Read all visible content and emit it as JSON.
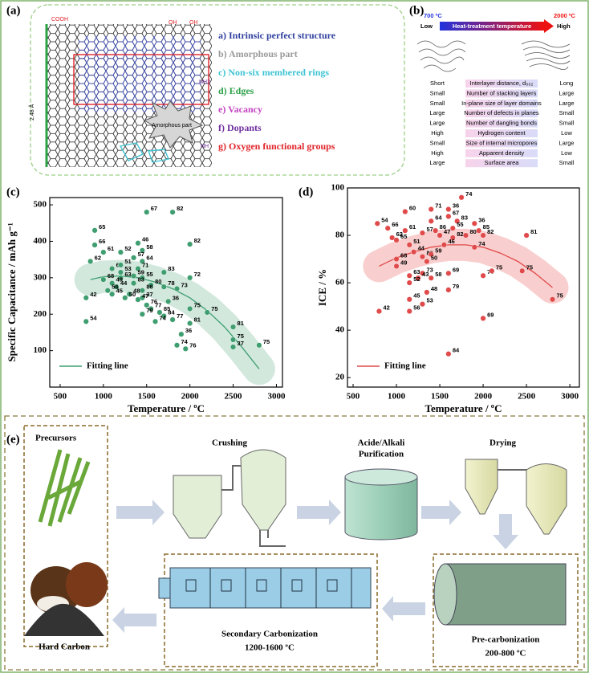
{
  "panel_a": {
    "label": "(a)",
    "items": [
      "a) Intrinsic perfect structure",
      "b) Amorphous part",
      "c) Non-six membered rings",
      "d) Edges",
      "e) Vacancy",
      "f) Dopants",
      "g) Oxygen functional groups"
    ],
    "item_colors": [
      "#2f3f9f",
      "#9a9a9a",
      "#3fc4d4",
      "#2fa24a",
      "#c443c4",
      "#6f2f9f",
      "#e0242a"
    ],
    "amorphous": "Amorphous part",
    "atoms": [
      "COOH",
      "OH",
      "OH",
      "NH2",
      "NH",
      "2.48 Å"
    ]
  },
  "panel_b": {
    "label": "(b)",
    "temp_low": "700 ºC",
    "temp_high": "2000 ºC",
    "low": "Low",
    "high": "High",
    "arrow_text": "Heat-treatment temperature",
    "rows": [
      [
        "Short",
        "Interlayer distance, d₀₀₂",
        "Long"
      ],
      [
        "Small",
        "Number of stacking layers",
        "Large"
      ],
      [
        "Small",
        "In-plane size of layer domains",
        "Large"
      ],
      [
        "Large",
        "Number of defects in planes",
        "Small"
      ],
      [
        "Large",
        "Number of dangling bonds",
        "Small"
      ],
      [
        "High",
        "Hydrogen content",
        "Low"
      ],
      [
        "Small",
        "Size of internal micropores",
        "Large"
      ],
      [
        "High",
        "Apparent density",
        "Low"
      ],
      [
        "Large",
        "Surface area",
        "Small"
      ]
    ]
  },
  "chart_data": [
    {
      "type": "scatter",
      "panel_label": "(c)",
      "xlabel": "Temperature / ºC",
      "ylabel": "Specific Capacitance / mAh g⁻¹",
      "xlim": [
        380,
        3070
      ],
      "xticks": [
        500,
        1000,
        1500,
        2000,
        2500,
        3000
      ],
      "ylim": [
        0,
        520
      ],
      "yticks": [
        100,
        200,
        300,
        400,
        500
      ],
      "points": {
        "color": "#3f9e70",
        "x": [
          900,
          900,
          1000,
          850,
          1100,
          1200,
          1500,
          1800,
          2000,
          800,
          800,
          1400,
          1450,
          1350,
          1450,
          1200,
          1400,
          1200,
          1350,
          1200,
          1450,
          1000,
          1100,
          1700,
          1150,
          1550,
          1700,
          1350,
          1450,
          1050,
          1100,
          1300,
          1450,
          1250,
          1400,
          2000,
          1850,
          1750,
          1500,
          1550,
          1650,
          1450,
          2000,
          2200,
          1700,
          2000,
          1600,
          1800,
          1900,
          1850,
          1950,
          2500,
          2500,
          2500,
          2800
        ],
        "values": [
          430,
          390,
          370,
          345,
          325,
          370,
          480,
          480,
          392,
          245,
          180,
          395,
          375,
          355,
          345,
          335,
          325,
          315,
          305,
          300,
          300,
          295,
          285,
          315,
          275,
          280,
          275,
          285,
          265,
          265,
          255,
          255,
          245,
          245,
          240,
          300,
          270,
          235,
          225,
          215,
          205,
          200,
          215,
          205,
          195,
          175,
          180,
          185,
          145,
          115,
          105,
          165,
          130,
          110,
          115
        ],
        "labels": [
          "65",
          "66",
          "61",
          "62",
          "60",
          "52",
          "67",
          "82",
          "82",
          "42",
          "54",
          "46",
          "58",
          "57",
          "64",
          "51",
          "71",
          "53",
          "59",
          "63",
          "55",
          "68",
          "49",
          "83",
          "44",
          "80",
          "78",
          "83",
          "86",
          "56",
          "45",
          "48",
          "37",
          "50",
          "47",
          "72",
          "73",
          "36",
          "76",
          "77",
          "85",
          "79",
          "75",
          "75",
          "84",
          "81",
          "74",
          "77",
          "36",
          "74",
          "76",
          "81",
          "75",
          "37",
          "75"
        ]
      },
      "fit": {
        "name": "Fitting line",
        "color": "#3f9e70",
        "band_color": "#cde6d9",
        "x": [
          850,
          1000,
          1200,
          1400,
          1600,
          1800,
          2000,
          2200,
          2400,
          2600,
          2800
        ],
        "values": [
          295,
          303,
          305,
          300,
          288,
          270,
          245,
          210,
          165,
          110,
          50
        ]
      }
    },
    {
      "type": "scatter",
      "panel_label": "(d)",
      "xlabel": "Temperature / ºC",
      "ylabel": "ICE / %",
      "xlim": [
        435,
        3110
      ],
      "xticks": [
        500,
        1000,
        1500,
        2000,
        2500,
        3000
      ],
      "ylim": [
        16,
        100
      ],
      "yticks": [
        20,
        40,
        60,
        80,
        100
      ],
      "points": {
        "color": "#e04a4a",
        "x": [
          1100,
          1400,
          1600,
          1750,
          900,
          1100,
          1400,
          1600,
          1700,
          1900,
          950,
          1000,
          1300,
          1450,
          1650,
          1500,
          1800,
          1650,
          1950,
          2000,
          2500,
          1150,
          1200,
          1550,
          1000,
          1300,
          1400,
          1000,
          1350,
          1900,
          1150,
          1300,
          1250,
          1150,
          1400,
          1600,
          2000,
          2100,
          2450,
          1350,
          1600,
          1150,
          1300,
          1150,
          800,
          2000,
          2800,
          1600,
          780
        ],
        "values": [
          90,
          91,
          91,
          96,
          83,
          82,
          86,
          88,
          86,
          85,
          79,
          78,
          81,
          82,
          83,
          80,
          80,
          79,
          82,
          80,
          80,
          76,
          73,
          76,
          70,
          71,
          72,
          67,
          69,
          75,
          63,
          64,
          62,
          60,
          62,
          64,
          63,
          65,
          65,
          56,
          57,
          53,
          51,
          48,
          48,
          45,
          53,
          30,
          85
        ],
        "labels": [
          "60",
          "71",
          "36",
          "74",
          "66",
          "61",
          "64",
          "67",
          "83",
          "36",
          "62",
          "65",
          "57",
          "86",
          "55",
          "47",
          "80",
          "82",
          "85",
          "82",
          "81",
          "51",
          "44",
          "46",
          "68",
          "83",
          "59",
          "49",
          "50",
          "74",
          "63",
          "73",
          "43",
          "52",
          "58",
          "69",
          "70",
          "75",
          "75",
          "48",
          "79",
          "45",
          "53",
          "56",
          "42",
          "69",
          "75",
          "84",
          "54"
        ]
      },
      "fit": {
        "name": "Fitting line",
        "color": "#e04a4a",
        "band_color": "#f8c9c9",
        "x": [
          800,
          1000,
          1200,
          1400,
          1600,
          1800,
          2000,
          2200,
          2400,
          2600,
          2800
        ],
        "values": [
          67,
          70.5,
          73,
          75,
          76,
          76,
          75,
          72.5,
          69,
          64,
          58
        ]
      }
    }
  ],
  "panel_e": {
    "label": "(e)",
    "precursors": "Precursors",
    "crushing": "Crushing",
    "purification": [
      "Acide/Alkali",
      "Purification"
    ],
    "drying": "Drying",
    "precarb": "Pre-carbonization",
    "precarb_temp": "200-800 ºC",
    "secondary": "Secondary Carbonization",
    "secondary_temp": "1200-1600 ºC",
    "product": "Hard Carbon"
  }
}
